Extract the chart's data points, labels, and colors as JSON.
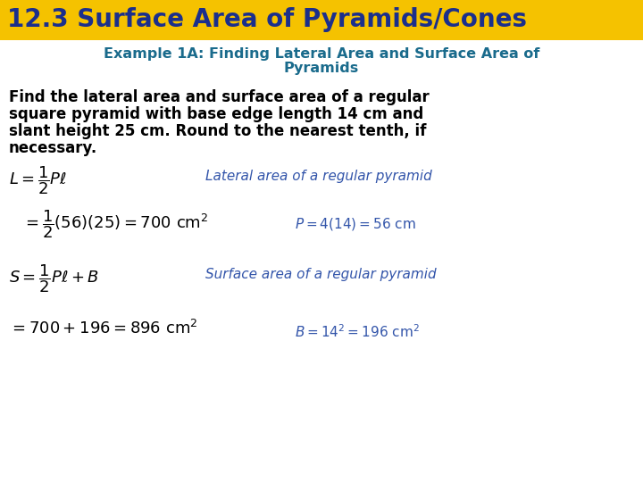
{
  "title": "12.3 Surface Area of Pyramids/Cones",
  "title_bg": "#F5C200",
  "title_color": "#1B2F8C",
  "title_fontsize": 20,
  "example_line1": "Example 1A: Finding Lateral Area and Surface Area of",
  "example_line2": "Pyramids",
  "example_color": "#1A6B8C",
  "example_fontsize": 11.5,
  "problem_color": "#000000",
  "problem_fontsize": 12,
  "formula_color": "#000000",
  "annotation_color": "#3355AA",
  "bg_color": "#FFFFFF",
  "title_bar_height": 45,
  "fig_width": 7.2,
  "fig_height": 5.4,
  "dpi": 100
}
